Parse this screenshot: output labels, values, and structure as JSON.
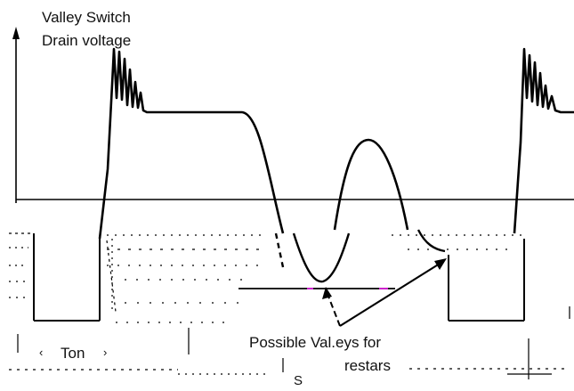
{
  "diagram": {
    "y_axis_label_line1": "Valley Switch",
    "y_axis_label_line2": "Drain voltage",
    "ton_label": "Ton",
    "valleys_label": "Possible Val.eys for",
    "restart_label": "restars",
    "ts_label": "S",
    "colors": {
      "line": "#000000",
      "magenta": "#cc22cc",
      "background": "#ffffff"
    }
  }
}
